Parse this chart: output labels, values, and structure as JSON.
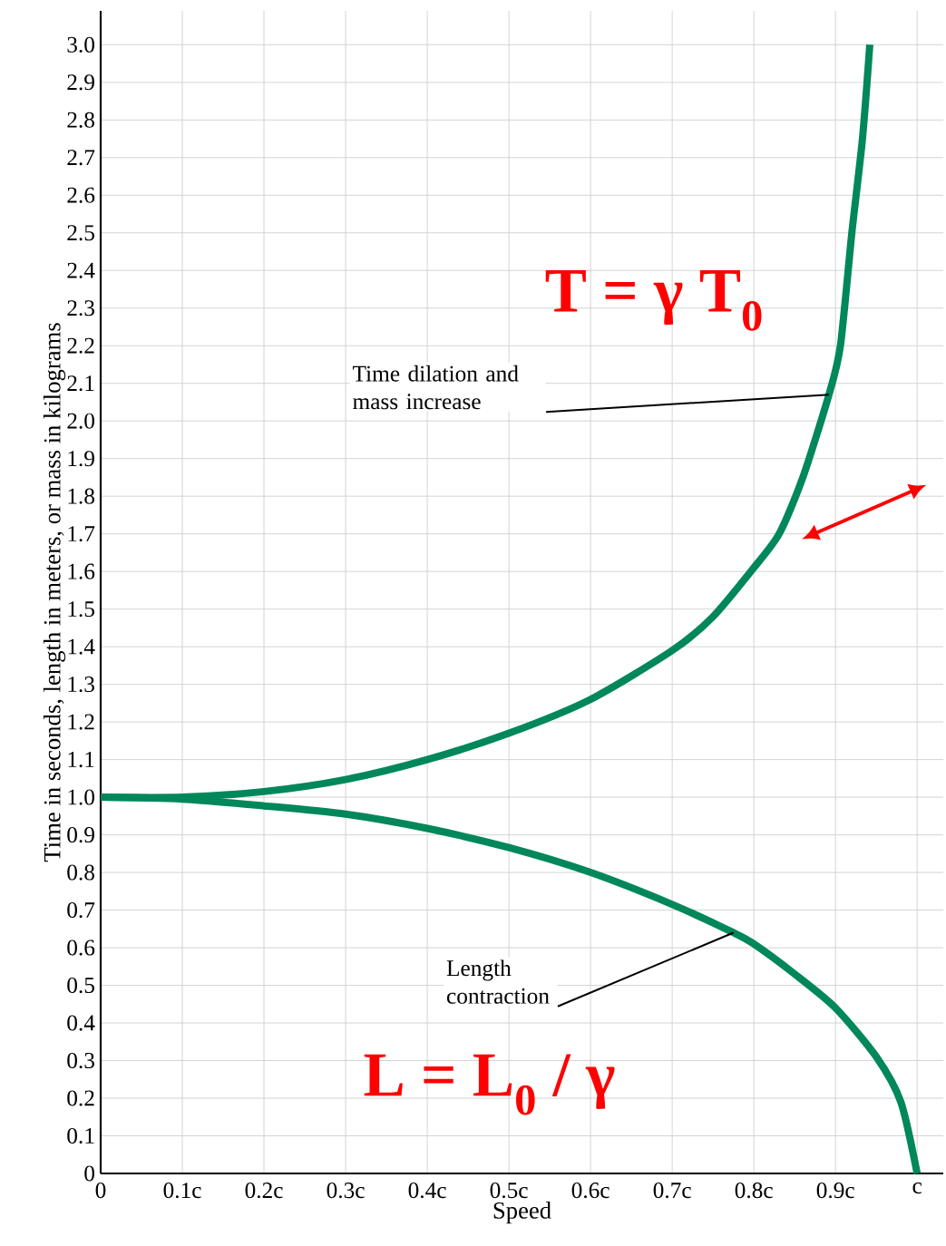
{
  "chart_data": {
    "type": "line",
    "xlabel": "Speed",
    "ylabel": "Time in seconds, length in meters, or mass in kilograms",
    "xlim": [
      0,
      1.032
    ],
    "ylim": [
      0,
      3.09
    ],
    "xticks": [
      0,
      {
        "value": 0.1,
        "label": "0.1c"
      },
      {
        "value": 0.2,
        "label": "0.2c"
      },
      {
        "value": 0.3,
        "label": "0.3c"
      },
      {
        "value": 0.4,
        "label": "0.4c"
      },
      {
        "value": 0.5,
        "label": "0.5c"
      },
      {
        "value": 0.6,
        "label": "0.6c"
      },
      {
        "value": 0.7,
        "label": "0.7c"
      },
      {
        "value": 0.8,
        "label": "0.8c"
      },
      {
        "value": 0.9,
        "label": "0.9c"
      },
      {
        "value": 1,
        "label": "c"
      }
    ],
    "yticks": [
      0,
      0.1,
      0.2,
      0.3,
      0.4,
      0.5,
      0.6,
      0.7,
      0.8,
      0.9,
      {
        "value": 1,
        "label": "1.0"
      },
      1.1,
      1.2,
      1.3,
      1.4,
      1.5,
      1.6,
      1.7,
      1.8,
      1.9,
      {
        "value": 2,
        "label": "2.0"
      },
      2.1,
      2.2,
      2.3,
      2.4,
      2.5,
      2.6,
      2.7,
      2.8,
      2.9,
      {
        "value": 3,
        "label": "3.0"
      }
    ],
    "grid": true,
    "series": [
      {
        "color": "#00875a",
        "x": [
          0,
          0.1,
          0.2,
          0.3,
          0.4,
          0.5,
          0.6,
          0.7,
          0.75,
          0.8,
          0.831,
          0.86,
          0.892,
          0.906,
          0.92,
          0.933,
          0.942
        ],
        "values": [
          1.0,
          1.0,
          1.015,
          1.047,
          1.1,
          1.17,
          1.26,
          1.39,
          1.48,
          1.61,
          1.7,
          1.85,
          2.07,
          2.2,
          2.5,
          2.75,
          3.0
        ]
      },
      {
        "color": "#00875a",
        "x": [
          0,
          0.1,
          0.2,
          0.3,
          0.4,
          0.5,
          0.6,
          0.7,
          0.775,
          0.8,
          0.85,
          0.9,
          0.95,
          0.98,
          1.0
        ],
        "values": [
          1.0,
          0.995,
          0.977,
          0.955,
          0.917,
          0.866,
          0.8,
          0.715,
          0.64,
          0.61,
          0.53,
          0.44,
          0.31,
          0.19,
          0.0
        ]
      }
    ],
    "annotations": [
      {
        "text": "Time dilation and mass increase",
        "x": 0.892,
        "y": 2.07
      },
      "T = γ T$_{0}$",
      {
        "text": "Length contraction",
        "x": 0.775,
        "y": 0.64
      },
      "L = L$_{0}$ / γ"
    ]
  }
}
